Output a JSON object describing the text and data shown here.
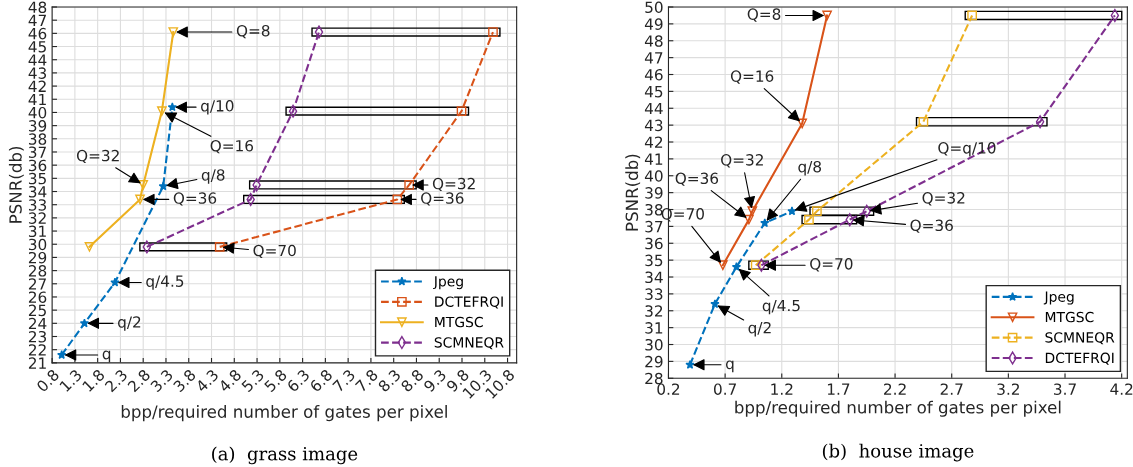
{
  "chart_data": [
    {
      "type": "line",
      "title": "(a)  grass image",
      "xlabel": "bpp/required number of gates per pixel",
      "ylabel": "PSNR(db)",
      "xlim": [
        0.8,
        11.0
      ],
      "xticks": [
        0.8,
        1.3,
        1.8,
        2.3,
        2.8,
        3.3,
        3.8,
        4.3,
        4.8,
        5.3,
        5.8,
        6.3,
        6.8,
        7.3,
        7.8,
        8.3,
        8.8,
        9.3,
        9.8,
        10.3,
        10.8
      ],
      "ylim": [
        21,
        48
      ],
      "yticks": [
        21,
        22,
        23,
        24,
        25,
        26,
        27,
        28,
        29,
        30,
        31,
        32,
        33,
        34,
        35,
        36,
        37,
        38,
        39,
        40,
        41,
        42,
        43,
        44,
        45,
        46,
        47,
        48
      ],
      "grid": true,
      "legend": "bottom right",
      "series": [
        {
          "name": "Jpeg",
          "color": "#0072bd",
          "line_style": "dashed",
          "marker": "star",
          "x": [
            1.01,
            1.51,
            2.18,
            3.24,
            3.44
          ],
          "values": [
            21.6,
            24.0,
            27.1,
            34.4,
            40.4
          ]
        },
        {
          "name": "DCTEFRQI",
          "color": "#d95319",
          "line_style": "dashed",
          "marker": "square",
          "x": [
            4.48,
            8.38,
            8.64,
            9.79,
            10.48
          ],
          "values": [
            29.8,
            33.4,
            34.5,
            40.1,
            46.1
          ]
        },
        {
          "name": "MTGSC",
          "color": "#edb120",
          "line_style": "solid",
          "marker": "triangle",
          "x": [
            1.62,
            2.73,
            2.8,
            3.21,
            3.46
          ],
          "values": [
            29.8,
            33.4,
            34.5,
            40.1,
            46.1
          ]
        },
        {
          "name": "SCMNEQR",
          "color": "#7e2f8e",
          "line_style": "dashed",
          "marker": "diamond",
          "x": [
            2.88,
            5.16,
            5.29,
            6.09,
            6.66
          ],
          "values": [
            29.8,
            33.4,
            34.5,
            40.1,
            46.1
          ]
        }
      ],
      "annotations": [
        {
          "text": "q",
          "x": 1.01,
          "y": 21.6
        },
        {
          "text": "q/2",
          "x": 1.51,
          "y": 24.0
        },
        {
          "text": "q/4.5",
          "x": 2.18,
          "y": 27.1
        },
        {
          "text": "q/8",
          "x": 3.24,
          "y": 34.4
        },
        {
          "text": "q/10",
          "x": 3.44,
          "y": 40.4
        },
        {
          "text": "Q=32",
          "x": 2.8,
          "y": 34.5
        },
        {
          "text": "Q=36",
          "x": 2.73,
          "y": 33.4
        },
        {
          "text": "Q=16",
          "x": 3.21,
          "y": 40.1
        },
        {
          "text": "Q=8",
          "x": 3.46,
          "y": 46.1
        },
        {
          "text": "Q=70",
          "x": 4.48,
          "y": 29.8
        },
        {
          "text": "Q=32",
          "x": 8.64,
          "y": 34.5
        },
        {
          "text": "Q=36",
          "x": 8.38,
          "y": 33.4
        }
      ]
    },
    {
      "type": "line",
      "title": "(b)  house image",
      "xlabel": "bpp/required number of gates per pixel",
      "ylabel": "PSNR(db)",
      "xlim": [
        0.2,
        4.25
      ],
      "xticks": [
        0.2,
        0.7,
        1.2,
        1.7,
        2.2,
        2.7,
        3.2,
        3.7,
        4.2
      ],
      "ylim": [
        28,
        50
      ],
      "yticks": [
        28,
        29,
        30,
        31,
        32,
        33,
        34,
        35,
        36,
        37,
        38,
        39,
        40,
        41,
        42,
        43,
        44,
        45,
        46,
        47,
        48,
        49,
        50
      ],
      "grid": true,
      "legend": "bottom right",
      "series": [
        {
          "name": "Jpeg",
          "color": "#0072bd",
          "line_style": "dashed",
          "marker": "star",
          "x": [
            0.39,
            0.61,
            0.8,
            1.05,
            1.29
          ],
          "values": [
            28.8,
            32.4,
            34.6,
            37.2,
            37.9
          ]
        },
        {
          "name": "MTGSC",
          "color": "#d95319",
          "line_style": "solid",
          "marker": "triangle",
          "x": [
            0.68,
            0.91,
            0.94,
            1.38,
            1.6
          ],
          "values": [
            34.7,
            37.4,
            37.9,
            43.1,
            49.5
          ]
        },
        {
          "name": "SCMNEQR",
          "color": "#edb120",
          "line_style": "dashed",
          "marker": "square",
          "x": [
            0.97,
            1.44,
            1.51,
            2.45,
            2.88
          ],
          "values": [
            34.7,
            37.4,
            37.9,
            43.2,
            49.5
          ]
        },
        {
          "name": "DCTEFRQI",
          "color": "#7e2f8e",
          "line_style": "dashed",
          "marker": "diamond",
          "x": [
            1.02,
            1.8,
            1.95,
            3.48,
            4.14
          ],
          "values": [
            34.7,
            37.4,
            37.9,
            43.2,
            49.5
          ]
        }
      ],
      "annotations": [
        {
          "text": "q",
          "x": 0.39,
          "y": 28.8
        },
        {
          "text": "q/2",
          "x": 0.61,
          "y": 32.4
        },
        {
          "text": "q/4.5",
          "x": 0.8,
          "y": 34.6
        },
        {
          "text": "q/8",
          "x": 1.05,
          "y": 37.2
        },
        {
          "text": "Q=q/10",
          "x": 1.29,
          "y": 37.9
        },
        {
          "text": "Q=70",
          "x": 0.68,
          "y": 34.7
        },
        {
          "text": "Q=36",
          "x": 0.91,
          "y": 37.4
        },
        {
          "text": "Q=32",
          "x": 0.94,
          "y": 37.9
        },
        {
          "text": "Q=16",
          "x": 1.38,
          "y": 43.1
        },
        {
          "text": "Q=8",
          "x": 1.6,
          "y": 49.5
        },
        {
          "text": "Q=32",
          "x": 1.95,
          "y": 37.9
        },
        {
          "text": "Q=36",
          "x": 1.8,
          "y": 37.4
        },
        {
          "text": "Q=70",
          "x": 1.02,
          "y": 34.7
        }
      ]
    }
  ]
}
